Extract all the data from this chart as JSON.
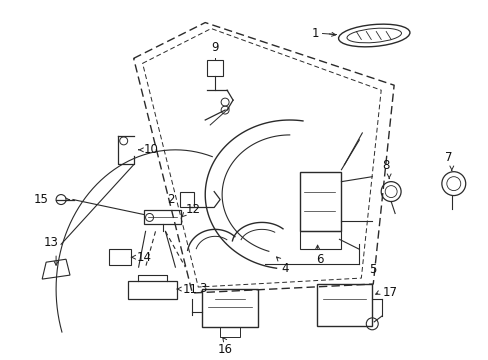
{
  "background_color": "#ffffff",
  "line_color": "#2a2a2a",
  "text_color": "#111111",
  "figsize": [
    4.89,
    3.6
  ],
  "dpi": 100,
  "door_outer": {
    "x": [
      0.28,
      0.42,
      0.85,
      0.79,
      0.4,
      0.28
    ],
    "y": [
      0.82,
      0.95,
      0.76,
      0.18,
      0.16,
      0.82
    ]
  },
  "door_inner": {
    "x": [
      0.31,
      0.44,
      0.8,
      0.74,
      0.42,
      0.31
    ],
    "y": [
      0.79,
      0.91,
      0.73,
      0.21,
      0.19,
      0.79
    ]
  },
  "callout_fontsize": 8.5,
  "arrow_fontsize": 7.0
}
